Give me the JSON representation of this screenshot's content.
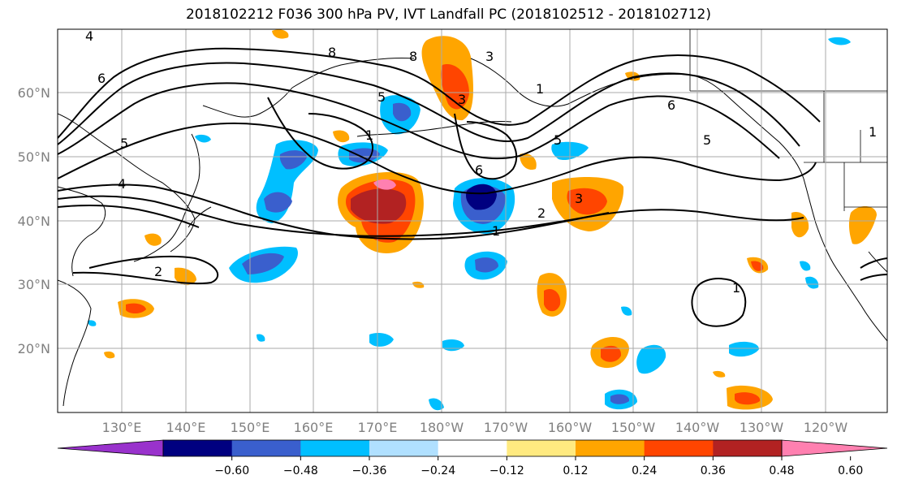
{
  "title": "2018102212 F036 300 hPa PV, IVT Landfall PC (2018102512 - 2018102712)",
  "lat_labels": [
    "60°N",
    "50°N",
    "40°N",
    "30°N",
    "20°N"
  ],
  "lon_labels": [
    "130°E",
    "140°E",
    "150°E",
    "160°E",
    "170°E",
    "180°W",
    "170°W",
    "160°W",
    "150°W",
    "140°W",
    "130°W",
    "120°W"
  ],
  "colorbar": {
    "ticks": [
      "−0.60",
      "−0.48",
      "−0.36",
      "−0.24",
      "−0.12",
      "0.12",
      "0.24",
      "0.36",
      "0.48",
      "0.60"
    ],
    "colors": [
      "#9932cc",
      "#000080",
      "#3a5fcd",
      "#00bfff",
      "#b0e0ff",
      "#ffffff",
      "#ffea80",
      "#ffa500",
      "#ff4500",
      "#b22222",
      "#ff80b0"
    ]
  },
  "contour_labels": [
    "4",
    "6",
    "5",
    "4",
    "2",
    "8",
    "8",
    "1",
    "5",
    "3",
    "3",
    "1",
    "5",
    "6",
    "2",
    "1",
    "3",
    "6",
    "5",
    "1",
    "1"
  ]
}
